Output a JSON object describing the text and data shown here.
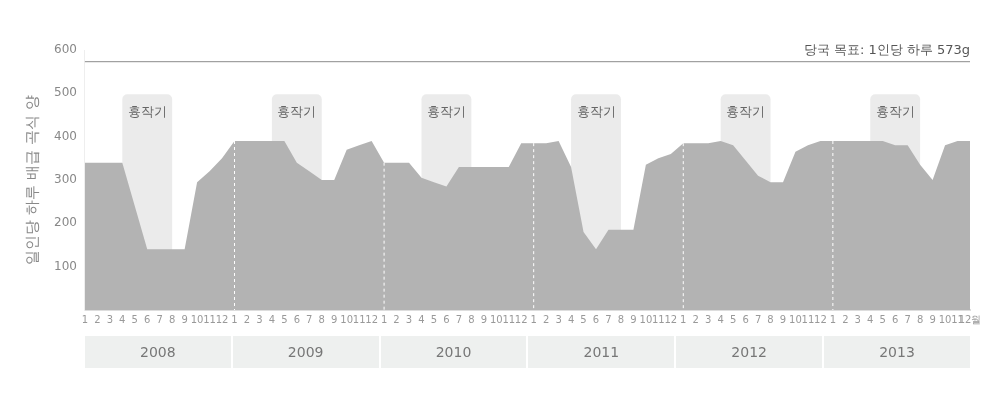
{
  "chart_data": {
    "type": "area",
    "ylabel": "일인당 하루 배급 곡식 양",
    "x": [
      "2008-01",
      "2008-02",
      "2008-03",
      "2008-04",
      "2008-05",
      "2008-06",
      "2008-07",
      "2008-08",
      "2008-09",
      "2008-10",
      "2008-11",
      "2008-12",
      "2009-01",
      "2009-02",
      "2009-03",
      "2009-04",
      "2009-05",
      "2009-06",
      "2009-07",
      "2009-08",
      "2009-09",
      "2009-10",
      "2009-11",
      "2009-12",
      "2010-01",
      "2010-02",
      "2010-03",
      "2010-04",
      "2010-05",
      "2010-06",
      "2010-07",
      "2010-08",
      "2010-09",
      "2010-10",
      "2010-11",
      "2010-12",
      "2011-01",
      "2011-02",
      "2011-03",
      "2011-04",
      "2011-05",
      "2011-06",
      "2011-07",
      "2011-08",
      "2011-09",
      "2011-10",
      "2011-11",
      "2011-12",
      "2012-01",
      "2012-02",
      "2012-03",
      "2012-04",
      "2012-05",
      "2012-06",
      "2012-07",
      "2012-08",
      "2012-09",
      "2012-10",
      "2012-11",
      "2012-12",
      "2013-01",
      "2013-02",
      "2013-03",
      "2013-04",
      "2013-05",
      "2013-06",
      "2013-07",
      "2013-08",
      "2013-09",
      "2013-10",
      "2013-11",
      "2013-12"
    ],
    "values": [
      340,
      340,
      340,
      340,
      240,
      140,
      140,
      140,
      140,
      295,
      320,
      350,
      390,
      390,
      390,
      390,
      390,
      340,
      320,
      300,
      300,
      370,
      380,
      390,
      340,
      340,
      340,
      305,
      295,
      285,
      330,
      330,
      330,
      330,
      330,
      385,
      385,
      385,
      390,
      330,
      180,
      140,
      185,
      185,
      185,
      335,
      350,
      360,
      385,
      385,
      385,
      390,
      380,
      345,
      310,
      295,
      295,
      365,
      380,
      390,
      390,
      390,
      390,
      390,
      390,
      380,
      380,
      335,
      300,
      380,
      390,
      390
    ],
    "color": "#b3b3b3",
    "xlim": [
      "2008-01",
      "2013-12"
    ],
    "xticks": [
      {
        "value": "2008-01",
        "label": "1"
      },
      {
        "value": "2008-02",
        "label": "2"
      },
      {
        "value": "2008-03",
        "label": "3"
      },
      {
        "value": "2008-04",
        "label": "4"
      },
      {
        "value": "2008-05",
        "label": "5"
      },
      {
        "value": "2008-06",
        "label": "6"
      },
      {
        "value": "2008-07",
        "label": "7"
      },
      {
        "value": "2008-08",
        "label": "8"
      },
      {
        "value": "2008-09",
        "label": "9"
      },
      {
        "value": "2008-10",
        "label": "10"
      },
      {
        "value": "2008-11",
        "label": "11"
      },
      {
        "value": "2008-12",
        "label": "12"
      },
      {
        "value": "2009-01",
        "label": "1"
      },
      {
        "value": "2009-02",
        "label": "2"
      },
      {
        "value": "2009-03",
        "label": "3"
      },
      {
        "value": "2009-04",
        "label": "4"
      },
      {
        "value": "2009-05",
        "label": "5"
      },
      {
        "value": "2009-06",
        "label": "6"
      },
      {
        "value": "2009-07",
        "label": "7"
      },
      {
        "value": "2009-08",
        "label": "8"
      },
      {
        "value": "2009-09",
        "label": "9"
      },
      {
        "value": "2009-10",
        "label": "10"
      },
      {
        "value": "2009-11",
        "label": "11"
      },
      {
        "value": "2009-12",
        "label": "12"
      },
      {
        "value": "2010-01",
        "label": "1"
      },
      {
        "value": "2010-02",
        "label": "2"
      },
      {
        "value": "2010-03",
        "label": "3"
      },
      {
        "value": "2010-04",
        "label": "4"
      },
      {
        "value": "2010-05",
        "label": "5"
      },
      {
        "value": "2010-06",
        "label": "6"
      },
      {
        "value": "2010-07",
        "label": "7"
      },
      {
        "value": "2010-08",
        "label": "8"
      },
      {
        "value": "2010-09",
        "label": "9"
      },
      {
        "value": "2010-10",
        "label": "10"
      },
      {
        "value": "2010-11",
        "label": "11"
      },
      {
        "value": "2010-12",
        "label": "12"
      },
      {
        "value": "2011-01",
        "label": "1"
      },
      {
        "value": "2011-02",
        "label": "2"
      },
      {
        "value": "2011-03",
        "label": "3"
      },
      {
        "value": "2011-04",
        "label": "4"
      },
      {
        "value": "2011-05",
        "label": "5"
      },
      {
        "value": "2011-06",
        "label": "6"
      },
      {
        "value": "2011-07",
        "label": "7"
      },
      {
        "value": "2011-08",
        "label": "8"
      },
      {
        "value": "2011-09",
        "label": "9"
      },
      {
        "value": "2011-10",
        "label": "10"
      },
      {
        "value": "2011-11",
        "label": "11"
      },
      {
        "value": "2011-12",
        "label": "12"
      },
      {
        "value": "2012-01",
        "label": "1"
      },
      {
        "value": "2012-02",
        "label": "2"
      },
      {
        "value": "2012-03",
        "label": "3"
      },
      {
        "value": "2012-04",
        "label": "4"
      },
      {
        "value": "2012-05",
        "label": "5"
      },
      {
        "value": "2012-06",
        "label": "6"
      },
      {
        "value": "2012-07",
        "label": "7"
      },
      {
        "value": "2012-08",
        "label": "8"
      },
      {
        "value": "2012-09",
        "label": "9"
      },
      {
        "value": "2012-10",
        "label": "10"
      },
      {
        "value": "2012-11",
        "label": "11"
      },
      {
        "value": "2012-12",
        "label": "12"
      },
      {
        "value": "2013-01",
        "label": "1"
      },
      {
        "value": "2013-02",
        "label": "2"
      },
      {
        "value": "2013-03",
        "label": "3"
      },
      {
        "value": "2013-04",
        "label": "4"
      },
      {
        "value": "2013-05",
        "label": "5"
      },
      {
        "value": "2013-06",
        "label": "6"
      },
      {
        "value": "2013-07",
        "label": "7"
      },
      {
        "value": "2013-08",
        "label": "8"
      },
      {
        "value": "2013-09",
        "label": "9"
      },
      {
        "value": "2013-10",
        "label": "10"
      },
      {
        "value": "2013-11",
        "label": "11"
      },
      {
        "value": "2013-12",
        "label": "12월"
      }
    ],
    "ylim": [
      0,
      600
    ],
    "yticks": [
      100,
      200,
      300,
      400,
      500,
      600
    ],
    "ref_lines": [
      {
        "axis": "y",
        "value": 573,
        "label": "당국 목표: 1인당 하루 573g",
        "color": "#8c8c8c"
      },
      {
        "axis": "x",
        "value": "2009-01",
        "color": "#ffffff",
        "line_style": "dashed"
      },
      {
        "axis": "x",
        "value": "2010-01",
        "color": "#ffffff",
        "line_style": "dashed"
      },
      {
        "axis": "x",
        "value": "2011-01",
        "color": "#ffffff",
        "line_style": "dashed"
      },
      {
        "axis": "x",
        "value": "2012-01",
        "color": "#ffffff",
        "line_style": "dashed"
      },
      {
        "axis": "x",
        "value": "2013-01",
        "color": "#ffffff",
        "line_style": "dashed"
      }
    ],
    "bands": [
      {
        "axis": "x",
        "from": "2008-04",
        "to": "2008-08",
        "label": "흉작기",
        "color": "#ebebeb"
      },
      {
        "axis": "x",
        "from": "2009-04",
        "to": "2009-08",
        "label": "흉작기",
        "color": "#ebebeb"
      },
      {
        "axis": "x",
        "from": "2010-04",
        "to": "2010-08",
        "label": "흉작기",
        "color": "#ebebeb"
      },
      {
        "axis": "x",
        "from": "2011-04",
        "to": "2011-08",
        "label": "흉작기",
        "color": "#ebebeb"
      },
      {
        "axis": "x",
        "from": "2012-04",
        "to": "2012-08",
        "label": "흉작기",
        "color": "#ebebeb"
      },
      {
        "axis": "x",
        "from": "2013-04",
        "to": "2013-08",
        "label": "흉작기",
        "color": "#ebebeb"
      }
    ],
    "annotations": [
      "2008",
      "2009",
      "2010",
      "2011",
      "2012",
      "2013"
    ],
    "grid": false,
    "legend": false
  }
}
